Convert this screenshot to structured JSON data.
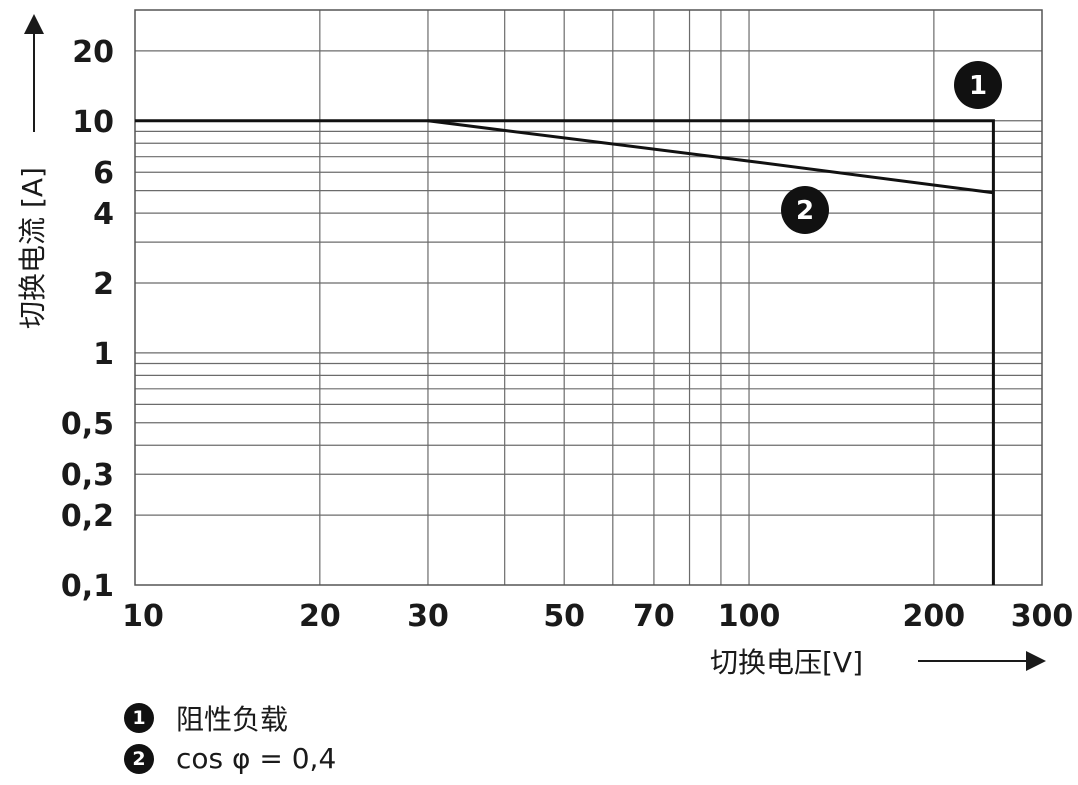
{
  "chart_data": {
    "type": "line",
    "x_scale": "log",
    "y_scale": "log",
    "xlim": [
      10,
      300
    ],
    "ylim": [
      0.1,
      30
    ],
    "xlabel": "切换电压[V]",
    "ylabel": "切换电流 [A]",
    "x_ticks": [
      10,
      20,
      30,
      50,
      70,
      100,
      200,
      300
    ],
    "x_tick_labels": [
      "10",
      "20",
      "30",
      "50",
      "70",
      "100",
      "200",
      "300"
    ],
    "y_ticks": [
      0.1,
      0.2,
      0.3,
      0.5,
      1,
      2,
      4,
      6,
      10,
      20
    ],
    "y_tick_labels": [
      "0,1",
      "0,2",
      "0,3",
      "0,5",
      "1",
      "2",
      "4",
      "6",
      "10",
      "20"
    ],
    "grid": true,
    "series": [
      {
        "name": "阻性负载",
        "marker": "1",
        "x": [
          10,
          30,
          250,
          250
        ],
        "y": [
          10,
          10,
          10,
          0.1
        ]
      },
      {
        "name": "cos φ = 0,4",
        "marker": "2",
        "x": [
          30,
          100,
          250
        ],
        "y": [
          10,
          6.7,
          4.9
        ]
      }
    ]
  },
  "legend": [
    {
      "marker": "1",
      "label": "阻性负载"
    },
    {
      "marker": "2",
      "label": "cos φ = 0,4"
    }
  ]
}
